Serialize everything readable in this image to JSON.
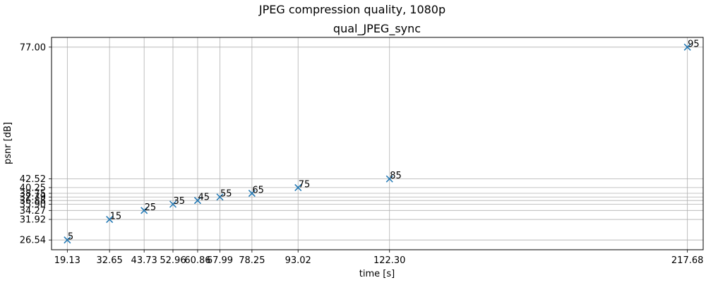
{
  "figure": {
    "suptitle": "JPEG compression quality, 1080p"
  },
  "chart_data": {
    "type": "scatter",
    "title": "qual_JPEG_sync",
    "xlabel": "time [s]",
    "ylabel": "psnr [dB]",
    "xlim": [
      14.08,
      222.73
    ],
    "ylim": [
      23.99,
      79.55
    ],
    "grid": true,
    "marker": "x",
    "marker_color": "#1f77b4",
    "x": [
      19.13,
      32.65,
      43.73,
      52.96,
      60.86,
      67.99,
      78.25,
      93.02,
      122.3,
      217.68
    ],
    "y": [
      26.54,
      31.92,
      34.27,
      35.9,
      36.88,
      37.79,
      38.75,
      40.25,
      42.52,
      77.0
    ],
    "point_labels": [
      "5",
      "15",
      "25",
      "35",
      "45",
      "55",
      "65",
      "75",
      "85",
      "95"
    ],
    "xticks": [
      "19.13",
      "32.65",
      "43.73",
      "52.96",
      "60.86",
      "67.99",
      "78.25",
      "93.02",
      "122.30",
      "217.68"
    ],
    "yticks": [
      "26.54",
      "31.92",
      "34.27",
      "35.90",
      "36.88",
      "37.79",
      "38.75",
      "40.25",
      "42.52",
      "77.00"
    ]
  }
}
